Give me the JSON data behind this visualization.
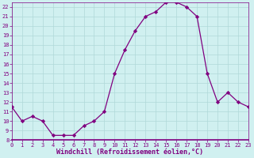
{
  "x": [
    0,
    1,
    2,
    3,
    4,
    5,
    6,
    7,
    8,
    9,
    10,
    11,
    12,
    13,
    14,
    15,
    16,
    17,
    18,
    19,
    20,
    21,
    22,
    23
  ],
  "y": [
    11.5,
    10.0,
    10.5,
    10.0,
    8.5,
    8.5,
    8.5,
    9.5,
    10.0,
    11.0,
    15.0,
    17.5,
    19.5,
    21.0,
    21.5,
    22.5,
    22.5,
    22.0,
    21.0,
    15.0,
    12.0,
    13.0,
    12.0,
    11.5
  ],
  "line_color": "#800080",
  "marker": "D",
  "marker_size": 2.2,
  "bg_color": "#d0f0f0",
  "grid_color": "#b0d8d8",
  "xlabel": "Windchill (Refroidissement éolien,°C)",
  "xlabel_color": "#800080",
  "ylim": [
    8,
    22.5
  ],
  "xlim": [
    0,
    23
  ],
  "yticks": [
    8,
    9,
    10,
    11,
    12,
    13,
    14,
    15,
    16,
    17,
    18,
    19,
    20,
    21,
    22
  ],
  "xticks": [
    0,
    1,
    2,
    3,
    4,
    5,
    6,
    7,
    8,
    9,
    10,
    11,
    12,
    13,
    14,
    15,
    16,
    17,
    18,
    19,
    20,
    21,
    22,
    23
  ],
  "tick_color": "#800080",
  "spine_color": "#800080",
  "axis_bottom_color": "#800080",
  "tick_fontsize": 5.0,
  "xlabel_fontsize": 6.0
}
